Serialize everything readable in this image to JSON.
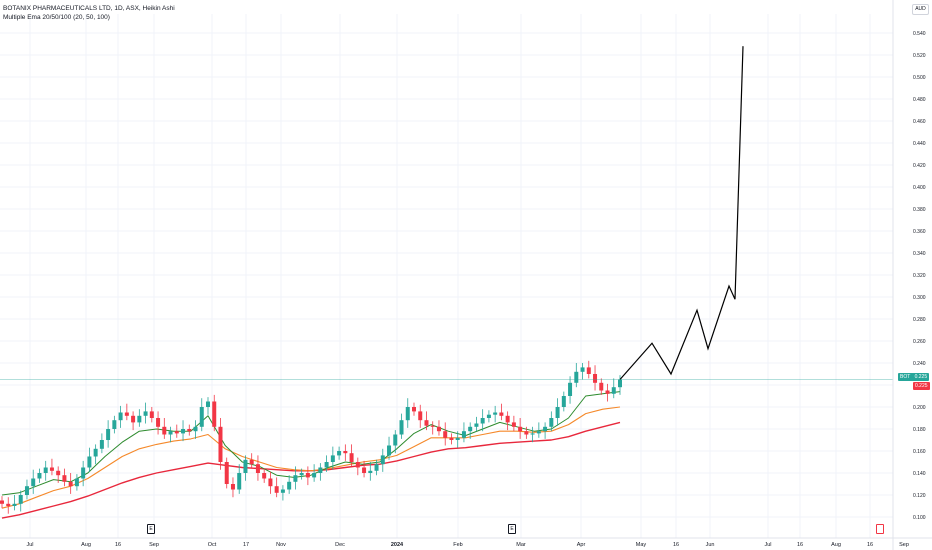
{
  "legend": {
    "symbol_line": "BOTANIX PHARMACEUTICALS LTD, 1D, ASX, Heikin Ashi",
    "indicator_line": "Multiple Ema 20/50/100 (20, 50, 100)"
  },
  "currency": "AUD",
  "colors": {
    "up": "#26a69a",
    "down": "#f23645",
    "ema20": "#2e8b2e",
    "ema50": "#f5892a",
    "ema100": "#e8283c",
    "projection": "#000000",
    "grid": "#f0f3fa",
    "last_price_line": "#26a69a"
  },
  "price_tags": [
    {
      "name": "symbol-price-tag",
      "text": "BOT",
      "value_text": "0.225",
      "color": "#26a69a"
    },
    {
      "name": "second-price-tag",
      "text": "",
      "value_text": "0.225",
      "color": "#f23645"
    }
  ],
  "event_markers": [
    {
      "name": "earnings-marker-aug",
      "label": "E",
      "color": "black"
    },
    {
      "name": "earnings-marker-feb",
      "label": "E",
      "color": "black"
    },
    {
      "name": "event-marker-sep",
      "label": "",
      "color": "red"
    }
  ],
  "chart_data": {
    "type": "candlestick",
    "style": "Heikin Ashi",
    "y_scale": "linear",
    "ylim": [
      0.09,
      0.55
    ],
    "y_ticks": [
      "0.540",
      "0.520",
      "0.500",
      "0.480",
      "0.460",
      "0.440",
      "0.420",
      "0.400",
      "0.380",
      "0.360",
      "0.340",
      "0.320",
      "0.300",
      "0.280",
      "0.260",
      "0.240",
      "0.220",
      "0.200",
      "0.180",
      "0.160",
      "0.140",
      "0.120",
      "0.100"
    ],
    "x_ticks": [
      "Jul",
      "Aug",
      "16",
      "Sep",
      "Oct",
      "17",
      "Nov",
      "Dec",
      "2024",
      "Feb",
      "Mar",
      "Apr",
      "May",
      "16",
      "Jun",
      "Jul",
      "16",
      "Aug",
      "16",
      "Sep"
    ],
    "last_price": 0.225,
    "price_path": [
      [
        0.115,
        0.112
      ],
      [
        0.112,
        0.11
      ],
      [
        0.11,
        0.112
      ],
      [
        0.112,
        0.12
      ],
      [
        0.12,
        0.128
      ],
      [
        0.128,
        0.135
      ],
      [
        0.135,
        0.14
      ],
      [
        0.14,
        0.145
      ],
      [
        0.145,
        0.142
      ],
      [
        0.142,
        0.138
      ],
      [
        0.138,
        0.132
      ],
      [
        0.132,
        0.128
      ],
      [
        0.128,
        0.135
      ],
      [
        0.135,
        0.145
      ],
      [
        0.145,
        0.155
      ],
      [
        0.155,
        0.162
      ],
      [
        0.162,
        0.17
      ],
      [
        0.17,
        0.18
      ],
      [
        0.18,
        0.188
      ],
      [
        0.188,
        0.195
      ],
      [
        0.195,
        0.192
      ],
      [
        0.192,
        0.186
      ],
      [
        0.186,
        0.192
      ],
      [
        0.192,
        0.196
      ],
      [
        0.196,
        0.19
      ],
      [
        0.19,
        0.182
      ],
      [
        0.182,
        0.175
      ],
      [
        0.175,
        0.178
      ],
      [
        0.178,
        0.176
      ],
      [
        0.176,
        0.18
      ],
      [
        0.18,
        0.178
      ],
      [
        0.178,
        0.182
      ],
      [
        0.182,
        0.2
      ],
      [
        0.2,
        0.205
      ],
      [
        0.205,
        0.182
      ],
      [
        0.182,
        0.15
      ],
      [
        0.15,
        0.13
      ],
      [
        0.13,
        0.125
      ],
      [
        0.125,
        0.14
      ],
      [
        0.14,
        0.152
      ],
      [
        0.152,
        0.148
      ],
      [
        0.148,
        0.14
      ],
      [
        0.14,
        0.135
      ],
      [
        0.135,
        0.128
      ],
      [
        0.128,
        0.122
      ],
      [
        0.122,
        0.125
      ],
      [
        0.125,
        0.132
      ],
      [
        0.132,
        0.138
      ],
      [
        0.138,
        0.14
      ],
      [
        0.14,
        0.136
      ],
      [
        0.136,
        0.14
      ],
      [
        0.14,
        0.145
      ],
      [
        0.145,
        0.15
      ],
      [
        0.15,
        0.156
      ],
      [
        0.156,
        0.16
      ],
      [
        0.16,
        0.158
      ],
      [
        0.158,
        0.15
      ],
      [
        0.15,
        0.145
      ],
      [
        0.145,
        0.14
      ],
      [
        0.14,
        0.142
      ],
      [
        0.142,
        0.148
      ],
      [
        0.148,
        0.156
      ],
      [
        0.156,
        0.165
      ],
      [
        0.165,
        0.175
      ],
      [
        0.175,
        0.188
      ],
      [
        0.188,
        0.2
      ],
      [
        0.2,
        0.196
      ],
      [
        0.196,
        0.188
      ],
      [
        0.188,
        0.183
      ],
      [
        0.183,
        0.182
      ],
      [
        0.182,
        0.178
      ],
      [
        0.178,
        0.172
      ],
      [
        0.172,
        0.17
      ],
      [
        0.17,
        0.172
      ],
      [
        0.172,
        0.178
      ],
      [
        0.178,
        0.182
      ],
      [
        0.182,
        0.185
      ],
      [
        0.185,
        0.19
      ],
      [
        0.19,
        0.193
      ],
      [
        0.193,
        0.195
      ],
      [
        0.195,
        0.192
      ],
      [
        0.192,
        0.186
      ],
      [
        0.186,
        0.182
      ],
      [
        0.182,
        0.178
      ],
      [
        0.178,
        0.175
      ],
      [
        0.175,
        0.176
      ],
      [
        0.176,
        0.178
      ],
      [
        0.178,
        0.182
      ],
      [
        0.182,
        0.19
      ],
      [
        0.19,
        0.2
      ],
      [
        0.2,
        0.21
      ],
      [
        0.21,
        0.222
      ],
      [
        0.222,
        0.232
      ],
      [
        0.232,
        0.236
      ],
      [
        0.236,
        0.23
      ],
      [
        0.23,
        0.222
      ],
      [
        0.222,
        0.215
      ],
      [
        0.215,
        0.212
      ],
      [
        0.212,
        0.218
      ],
      [
        0.218,
        0.225
      ]
    ],
    "ema20": [
      0.12,
      0.122,
      0.128,
      0.134,
      0.132,
      0.14,
      0.155,
      0.168,
      0.178,
      0.18,
      0.178,
      0.178,
      0.192,
      0.165,
      0.15,
      0.146,
      0.138,
      0.136,
      0.138,
      0.145,
      0.15,
      0.148,
      0.15,
      0.162,
      0.176,
      0.184,
      0.178,
      0.174,
      0.18,
      0.186,
      0.182,
      0.178,
      0.18,
      0.19,
      0.21,
      0.212,
      0.214
    ],
    "ema50": [
      0.108,
      0.112,
      0.118,
      0.124,
      0.128,
      0.135,
      0.145,
      0.155,
      0.162,
      0.166,
      0.169,
      0.171,
      0.175,
      0.162,
      0.155,
      0.15,
      0.145,
      0.143,
      0.142,
      0.144,
      0.147,
      0.15,
      0.152,
      0.156,
      0.164,
      0.172,
      0.172,
      0.172,
      0.175,
      0.178,
      0.178,
      0.177,
      0.178,
      0.184,
      0.194,
      0.198,
      0.2
    ],
    "ema100": [
      0.099,
      0.102,
      0.106,
      0.11,
      0.114,
      0.119,
      0.125,
      0.131,
      0.136,
      0.14,
      0.143,
      0.146,
      0.149,
      0.147,
      0.145,
      0.144,
      0.143,
      0.142,
      0.142,
      0.143,
      0.145,
      0.147,
      0.148,
      0.151,
      0.155,
      0.159,
      0.162,
      0.163,
      0.165,
      0.167,
      0.168,
      0.169,
      0.17,
      0.173,
      0.178,
      0.182,
      0.186
    ],
    "projection_path": [
      0.225,
      0.258,
      0.23,
      0.288,
      0.253,
      0.31,
      0.298,
      0.528
    ]
  }
}
